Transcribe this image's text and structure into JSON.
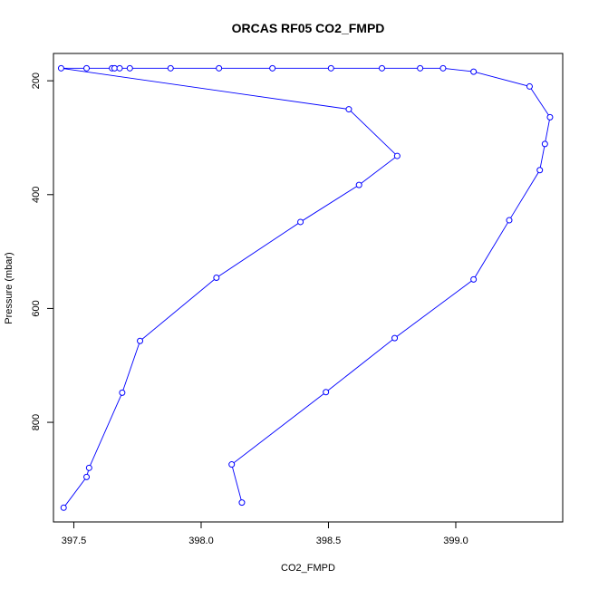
{
  "chart_data": {
    "type": "line",
    "title": "ORCAS RF05 CO2_FMPD",
    "xlabel": "CO2_FMPD",
    "ylabel": "Pressure (mbar)",
    "xlim": [
      397.42,
      399.42
    ],
    "ylim": [
      975,
      152
    ],
    "y_reversed": true,
    "x_ticks": [
      397.5,
      398.0,
      398.5,
      399.0
    ],
    "x_tick_labels": [
      "397.5",
      "398.0",
      "398.5",
      "399.0"
    ],
    "y_ticks": [
      200,
      400,
      600,
      800
    ],
    "y_tick_labels": [
      "200",
      "400",
      "600",
      "800"
    ],
    "grid": false,
    "legend": "none",
    "colors": {
      "series": "#0000ff",
      "axes": "#000000"
    },
    "series": [
      {
        "points": [
          [
            397.46,
            950
          ],
          [
            397.55,
            896
          ],
          [
            397.56,
            880
          ],
          [
            397.69,
            748
          ],
          [
            397.76,
            657
          ],
          [
            398.06,
            546
          ],
          [
            398.39,
            448
          ],
          [
            398.62,
            383
          ],
          [
            398.77,
            332
          ],
          [
            398.58,
            250
          ],
          [
            397.45,
            178
          ],
          [
            397.55,
            178
          ],
          [
            397.65,
            178
          ],
          [
            397.66,
            178
          ],
          [
            397.68,
            178
          ],
          [
            397.72,
            178
          ],
          [
            397.88,
            178
          ],
          [
            398.07,
            178
          ],
          [
            398.28,
            178
          ],
          [
            398.51,
            178
          ],
          [
            398.71,
            178
          ],
          [
            398.86,
            178
          ],
          [
            398.95,
            178
          ],
          [
            399.07,
            184
          ],
          [
            399.29,
            210
          ],
          [
            399.37,
            264
          ],
          [
            399.35,
            311
          ],
          [
            399.33,
            357
          ],
          [
            399.21,
            445
          ],
          [
            399.07,
            549
          ],
          [
            398.76,
            652
          ],
          [
            398.49,
            747
          ],
          [
            398.12,
            874
          ],
          [
            398.16,
            941
          ]
        ]
      }
    ]
  }
}
